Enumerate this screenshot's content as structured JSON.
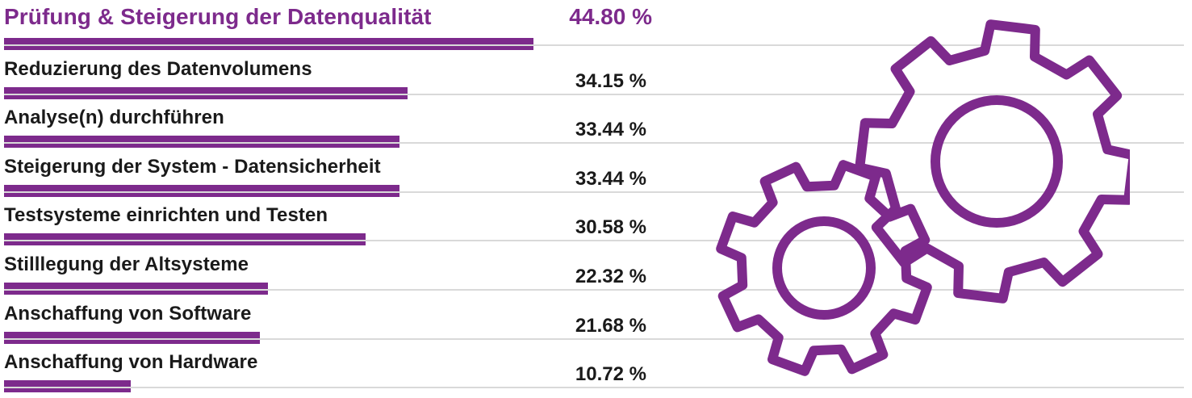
{
  "chart_data": {
    "type": "bar",
    "orientation": "horizontal",
    "categories": [
      "Prüfung & Steigerung der Datenqualität",
      "Reduzierung des Datenvolumens",
      "Analyse(n) durchführen",
      "Steigerung der System - Datensicherheit",
      "Testsysteme einrichten und Testen",
      "Stilllegung der Altsysteme",
      "Anschaffung von Software",
      "Anschaffung von Hardware"
    ],
    "values": [
      44.8,
      34.15,
      33.44,
      33.44,
      30.58,
      22.32,
      21.68,
      10.72
    ],
    "value_labels": [
      "44.80 %",
      "34.15 %",
      "33.44 %",
      "33.44 %",
      "30.58 %",
      "22.32 %",
      "21.68 %",
      "10.72 %"
    ],
    "highlighted_index": 0,
    "grid": true,
    "xlim": [
      0,
      44.8
    ]
  },
  "colors": {
    "accent": "#7d2a8c",
    "text": "#1a1a1a",
    "gridline": "#d9d9d9"
  },
  "decoration": {
    "icon": "gears-icon"
  }
}
